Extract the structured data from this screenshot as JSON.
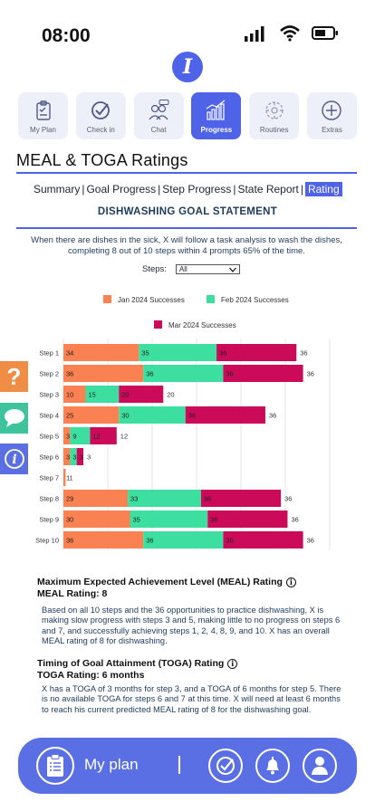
{
  "status": {
    "time": "08:00"
  },
  "nav": [
    {
      "label": "My Plan",
      "icon": "clipboard-icon",
      "active": false
    },
    {
      "label": "Check in",
      "icon": "checkmark-icon",
      "active": false
    },
    {
      "label": "Chat",
      "icon": "people-chat-icon",
      "active": false
    },
    {
      "label": "Progress",
      "icon": "bar-chart-icon",
      "active": true
    },
    {
      "label": "Routines",
      "icon": "routine-icon",
      "active": false
    },
    {
      "label": "Extras",
      "icon": "plus-icon",
      "active": false
    }
  ],
  "page": {
    "title": "MEAL & TOGA Ratings"
  },
  "tabs": [
    "Summary",
    "Goal Progress",
    "Step Progress",
    "State Report",
    "Rating"
  ],
  "active_tab": "Rating",
  "goal": {
    "heading": "DISHWASHING GOAL STATEMENT",
    "statement": "When there are dishes in the sick, X will follow a task analysis to wash the dishes, completing 8 out of 10 steps within 4 prompts 65% of the time."
  },
  "steps_filter": {
    "label": "Steps:",
    "value": "All"
  },
  "colors": {
    "accent": "#4f63e8",
    "jan": "#f98152",
    "feb": "#3ddfa0",
    "mar": "#cc0a5a"
  },
  "chart_data": {
    "type": "bar",
    "orientation": "horizontal",
    "stacked": true,
    "categories": [
      "Step 1",
      "Step 2",
      "Step 3",
      "Step 4",
      "Step 5",
      "Step 6",
      "Step 7",
      "Step 8",
      "Step 9",
      "Step 10"
    ],
    "series": [
      {
        "name": "Jan 2024 Successes",
        "values": [
          34,
          36,
          10,
          25,
          3,
          3,
          1,
          29,
          30,
          36
        ]
      },
      {
        "name": "Feb 2024 Successes",
        "values": [
          35,
          36,
          15,
          30,
          9,
          3,
          0,
          33,
          35,
          36
        ]
      },
      {
        "name": "Mar 2024 Successes",
        "values": [
          36,
          36,
          20,
          36,
          12,
          3,
          0,
          36,
          36,
          36
        ]
      }
    ],
    "end_labels": [
      36,
      36,
      20,
      36,
      12,
      3,
      1,
      36,
      36,
      36
    ],
    "xlim": [
      0,
      120
    ],
    "xticks": [
      0,
      20,
      40,
      60,
      80,
      100,
      120
    ],
    "grid": true,
    "legend_position": "top"
  },
  "meal": {
    "title": "Maximum Expected Achievement Level (MEAL) Rating",
    "rating": "MEAL Rating: 8",
    "body": "Based on all 10 steps and the 36 opportunities to practice dishwashing, X is making slow progress with steps 3 and 5, making little to no progress on steps 6 and 7, and successfully achieving steps 1, 2, 4, 8, 9, and 10. X has an overall MEAL rating of 8 for dishwashing."
  },
  "toga": {
    "title": "Timing of Goal Attainment (TOGA) Rating",
    "rating": "TOGA Rating: 6 months",
    "body": "X has a TOGA of 3 months for step 3, and a TOGA of 6 months for step 5. There is no available TOGA for steps 6 and 7 at this time. X will need at least 6 months to reach his current predicted MEAL rating of 8 for the dishwashing goal."
  },
  "bottom_bar": {
    "label": "My plan"
  }
}
